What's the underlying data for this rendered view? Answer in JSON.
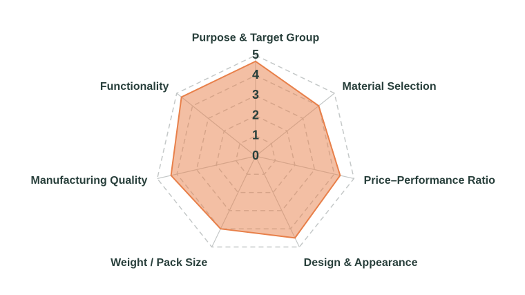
{
  "chart_data": {
    "type": "radar",
    "categories": [
      "Purpose & Target Group",
      "Material Selection",
      "Price–Performance Ratio",
      "Design & Appearance",
      "Weight / Pack Size",
      "Manufacturing Quality",
      "Functionality"
    ],
    "values": [
      4.7,
      4.0,
      4.3,
      4.5,
      4.0,
      4.3,
      4.7
    ],
    "color": "#e8804a",
    "rlim": [
      0,
      5
    ],
    "rticks": [
      0,
      1,
      2,
      3,
      4,
      5
    ],
    "grid": true
  }
}
